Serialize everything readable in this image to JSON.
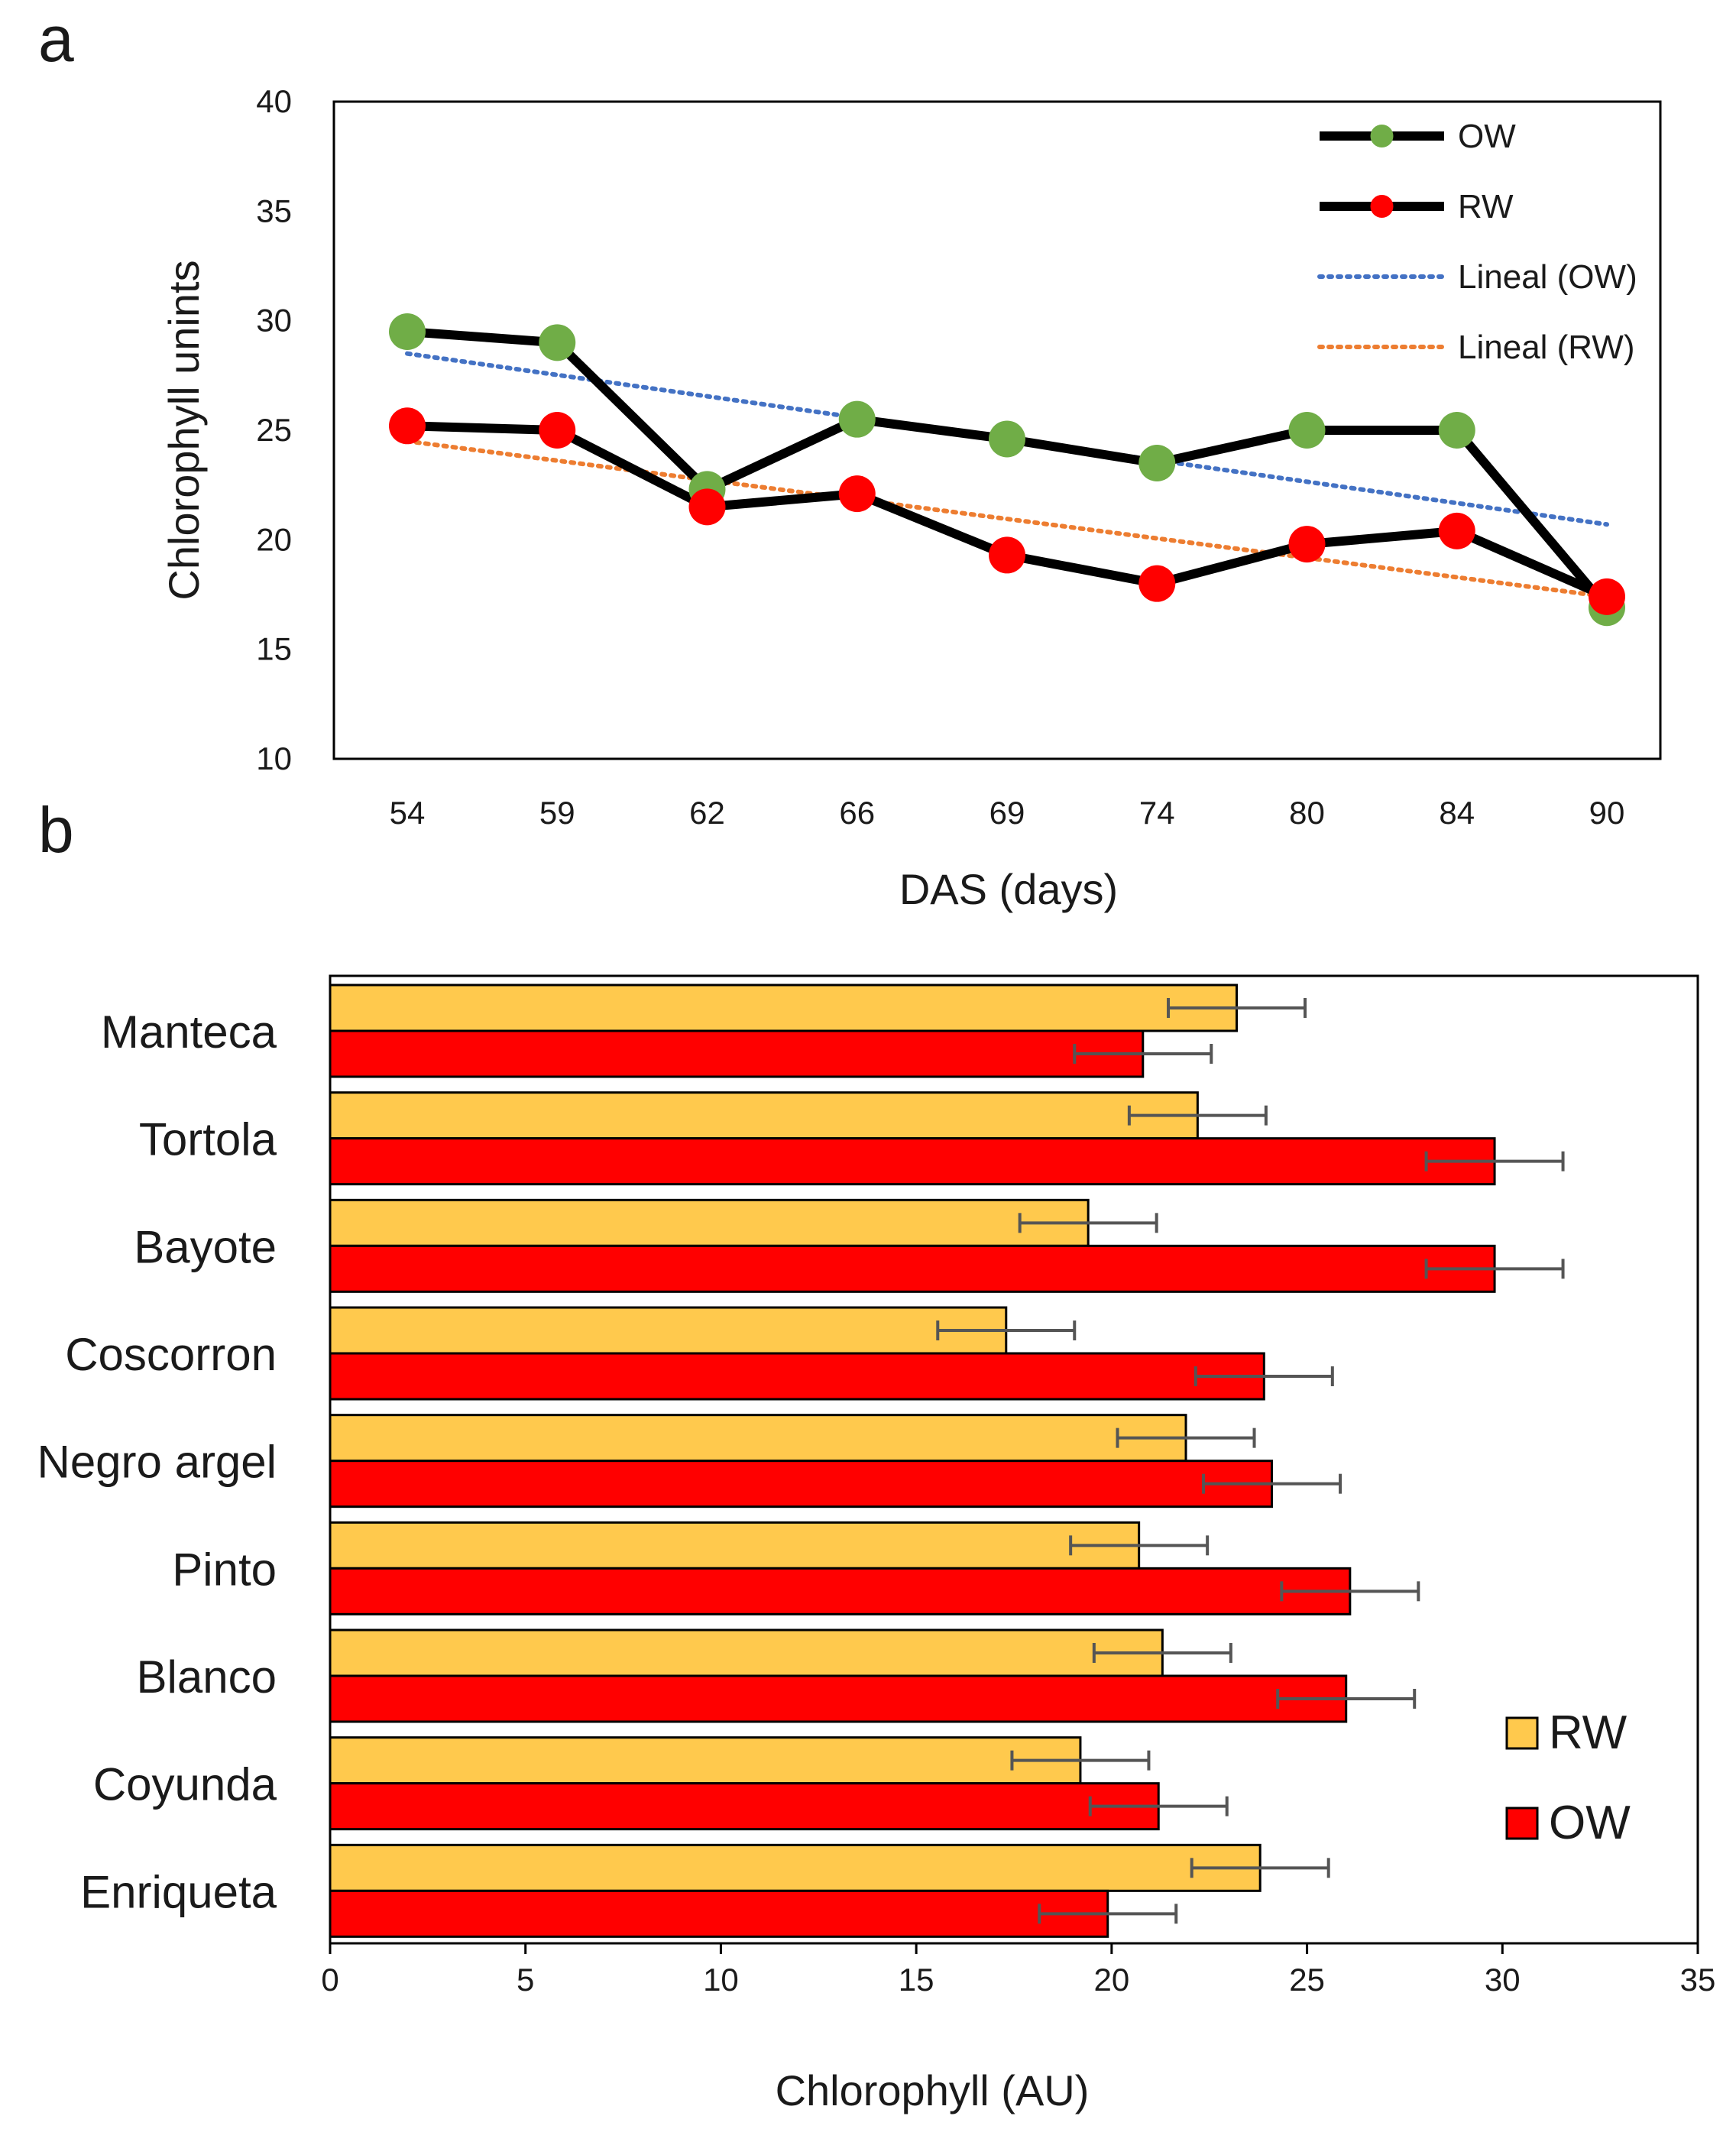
{
  "chart_data": [
    {
      "panel": "a",
      "type": "line",
      "categories": [
        "54",
        "59",
        "62",
        "66",
        "69",
        "74",
        "80",
        "84",
        "90"
      ],
      "series": [
        {
          "name": "OW",
          "values": [
            29.5,
            29.0,
            22.3,
            25.5,
            24.6,
            23.5,
            25.0,
            25.0,
            16.9
          ],
          "marker_color": "#70ad47",
          "line_color": "#000000"
        },
        {
          "name": "RW",
          "values": [
            25.2,
            25.0,
            21.5,
            22.1,
            19.3,
            18.0,
            19.8,
            20.4,
            17.4
          ],
          "marker_color": "#ff0000",
          "line_color": "#000000"
        }
      ],
      "trendlines": [
        {
          "name": "Lineal (OW)",
          "start": 28.5,
          "end": 20.7,
          "color": "#4472c4"
        },
        {
          "name": "Lineal (RW)",
          "start": 24.5,
          "end": 17.4,
          "color": "#ed7d31"
        }
      ],
      "ylabel": "Chlorophyll unints",
      "xlabel": "DAS (days)",
      "ylim": [
        10,
        40
      ],
      "yticks": [
        "10",
        "15",
        "20",
        "25",
        "30",
        "35",
        "40"
      ],
      "legend": "top-right"
    },
    {
      "panel": "b",
      "type": "bar",
      "orientation": "horizontal",
      "categories": [
        "Manteca",
        "Tortola",
        "Bayote",
        "Coscorron",
        "Negro argel",
        "Pinto",
        "Blanco",
        "Coyunda",
        "Enriqueta"
      ],
      "series": [
        {
          "name": "RW",
          "values": [
            23.2,
            22.2,
            19.4,
            17.3,
            21.9,
            20.7,
            21.3,
            19.2,
            23.8
          ],
          "errors": [
            1.75,
            1.75,
            1.75,
            1.75,
            1.75,
            1.75,
            1.75,
            1.75,
            1.75
          ],
          "color": "#ffc94d"
        },
        {
          "name": "OW",
          "values": [
            20.8,
            29.8,
            29.8,
            23.9,
            24.1,
            26.1,
            26.0,
            21.2,
            19.9
          ],
          "errors": [
            1.75,
            1.75,
            1.75,
            1.75,
            1.75,
            1.75,
            1.75,
            1.75,
            1.75
          ],
          "color": "#ff0000"
        }
      ],
      "xlabel": "Chlorophyll (AU)",
      "xlim": [
        0,
        35
      ],
      "xticks": [
        "0",
        "5",
        "10",
        "15",
        "20",
        "25",
        "30",
        "35"
      ],
      "legend": "bottom-right"
    }
  ],
  "labels": {
    "panel_a": "a",
    "panel_b": "b"
  }
}
